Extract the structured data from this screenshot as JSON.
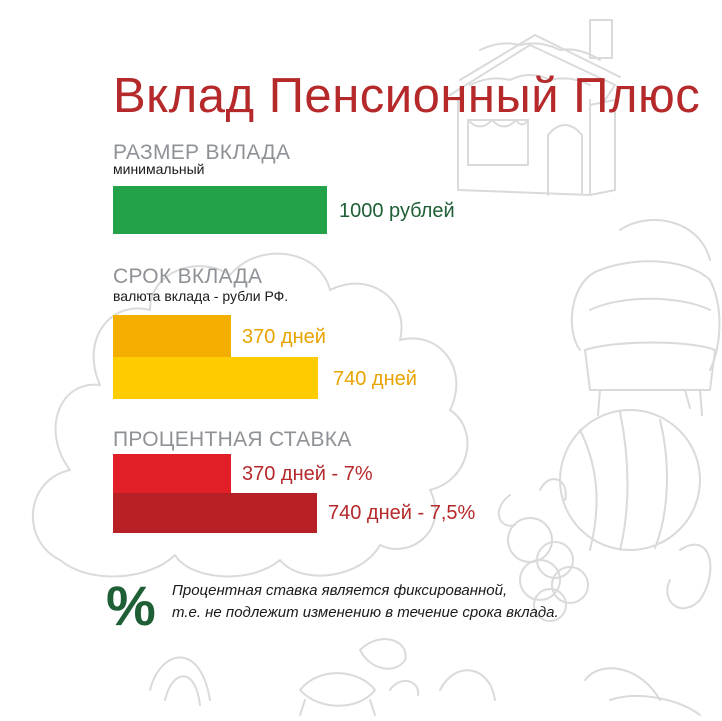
{
  "title": "Вклад Пенсионный Плюс",
  "size_section": {
    "label": "РАЗМЕР ВКЛАДА",
    "sublabel": "минимальный",
    "bar_text": "1000 рублей",
    "color": "#23a24a",
    "text_color": "#1f5f36"
  },
  "term_section": {
    "label": "СРОК ВКЛАДА",
    "sublabel": "валюта вклада - рубли РФ.",
    "bars": [
      {
        "text": "370 дней",
        "color": "#f4ae00",
        "text_color": "#e9a300"
      },
      {
        "text": "740 дней",
        "color": "#ffcc00",
        "text_color": "#e9a300"
      }
    ]
  },
  "rate_section": {
    "label": "ПРОЦЕНТНАЯ СТАВКА",
    "bars": [
      {
        "text": "370 дней - 7%",
        "color": "#e21e26",
        "text_color": "#b5292a"
      },
      {
        "text": "740 дней - 7,5%",
        "color": "#b72126",
        "text_color": "#b5292a"
      }
    ]
  },
  "note": {
    "symbol": "%",
    "line1": "Процентная ставка является фиксированной,",
    "line2": "т.е. не подлежит изменению в течение срока вклада."
  },
  "colors": {
    "title": "#b5292a",
    "section_label": "#8e9296",
    "sketch": "#d7d8da"
  }
}
